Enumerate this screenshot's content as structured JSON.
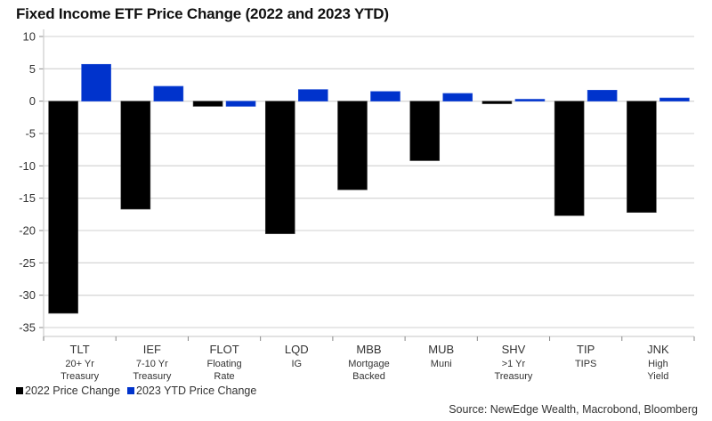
{
  "chart_data": {
    "type": "bar",
    "title": "Fixed Income ETF Price Change (2022 and 2023 YTD)",
    "xlabel": "",
    "ylabel": "",
    "ylim": [
      -35,
      10
    ],
    "yticks": [
      10,
      5,
      0,
      -5,
      -10,
      -15,
      -20,
      -25,
      -30,
      -35
    ],
    "grid": true,
    "legend_position": "bottom-left",
    "categories": [
      {
        "ticker": "TLT",
        "desc": [
          "20+ Yr",
          "Treasury"
        ]
      },
      {
        "ticker": "IEF",
        "desc": [
          "7-10 Yr",
          "Treasury"
        ]
      },
      {
        "ticker": "FLOT",
        "desc": [
          "Floating",
          "Rate"
        ]
      },
      {
        "ticker": "LQD",
        "desc": [
          "IG"
        ]
      },
      {
        "ticker": "MBB",
        "desc": [
          "Mortgage",
          "Backed"
        ]
      },
      {
        "ticker": "MUB",
        "desc": [
          "Muni"
        ]
      },
      {
        "ticker": "SHV",
        "desc": [
          ">1 Yr",
          "Treasury"
        ]
      },
      {
        "ticker": "TIP",
        "desc": [
          "TIPS"
        ]
      },
      {
        "ticker": "JNK",
        "desc": [
          "High",
          "Yield"
        ]
      }
    ],
    "series": [
      {
        "name": "2022 Price Change",
        "color": "#000000",
        "values": [
          -32.8,
          -16.7,
          -0.8,
          -20.5,
          -13.7,
          -9.2,
          -0.4,
          -17.7,
          -17.2
        ]
      },
      {
        "name": "2023 YTD Price Change",
        "color": "#0033cc",
        "values": [
          5.7,
          2.3,
          -0.8,
          1.8,
          1.5,
          1.2,
          0.3,
          1.7,
          0.5
        ]
      }
    ],
    "source": "Source: NewEdge Wealth, Macrobond, Bloomberg"
  }
}
